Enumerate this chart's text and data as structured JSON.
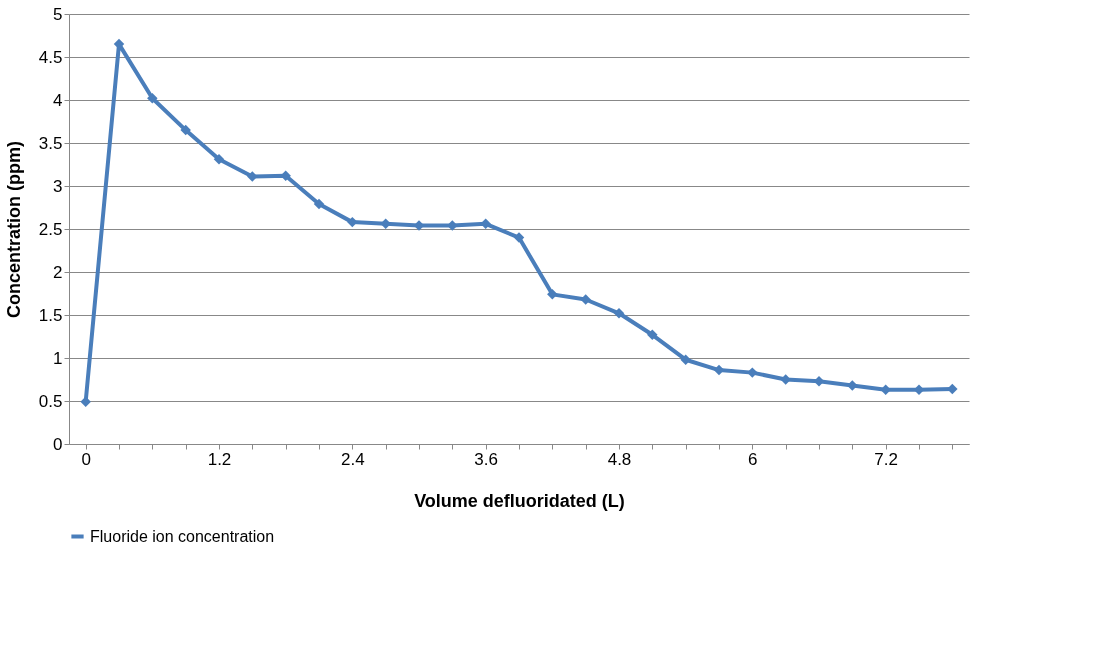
{
  "chart_data": {
    "type": "line",
    "xlabel": "Volume  defluoridated (L)",
    "ylabel": "Concentration (ppm)",
    "categories": [
      "0",
      null,
      null,
      null,
      "1.2",
      null,
      null,
      null,
      "2.4",
      null,
      null,
      null,
      "3.6",
      null,
      null,
      null,
      "4.8",
      null,
      null,
      null,
      "6",
      null,
      null,
      null,
      "7.2",
      null,
      null
    ],
    "series": [
      {
        "name": "Fluoride ion concentration",
        "color": "#4a7ebb",
        "values": [
          0.49,
          4.65,
          4.02,
          3.65,
          3.31,
          3.11,
          3.12,
          2.79,
          2.58,
          2.56,
          2.54,
          2.54,
          2.56,
          2.4,
          1.74,
          1.68,
          1.52,
          1.27,
          0.98,
          0.86,
          0.83,
          0.75,
          0.73,
          0.68,
          0.63,
          0.63,
          0.64
        ]
      }
    ],
    "ylim": [
      0,
      5
    ],
    "yticks": [
      0,
      0.5,
      1,
      1.5,
      2,
      2.5,
      3,
      3.5,
      4,
      4.5,
      5
    ],
    "grid": "y",
    "legend": "bottom",
    "marker": "diamond",
    "line_style": "solid"
  }
}
